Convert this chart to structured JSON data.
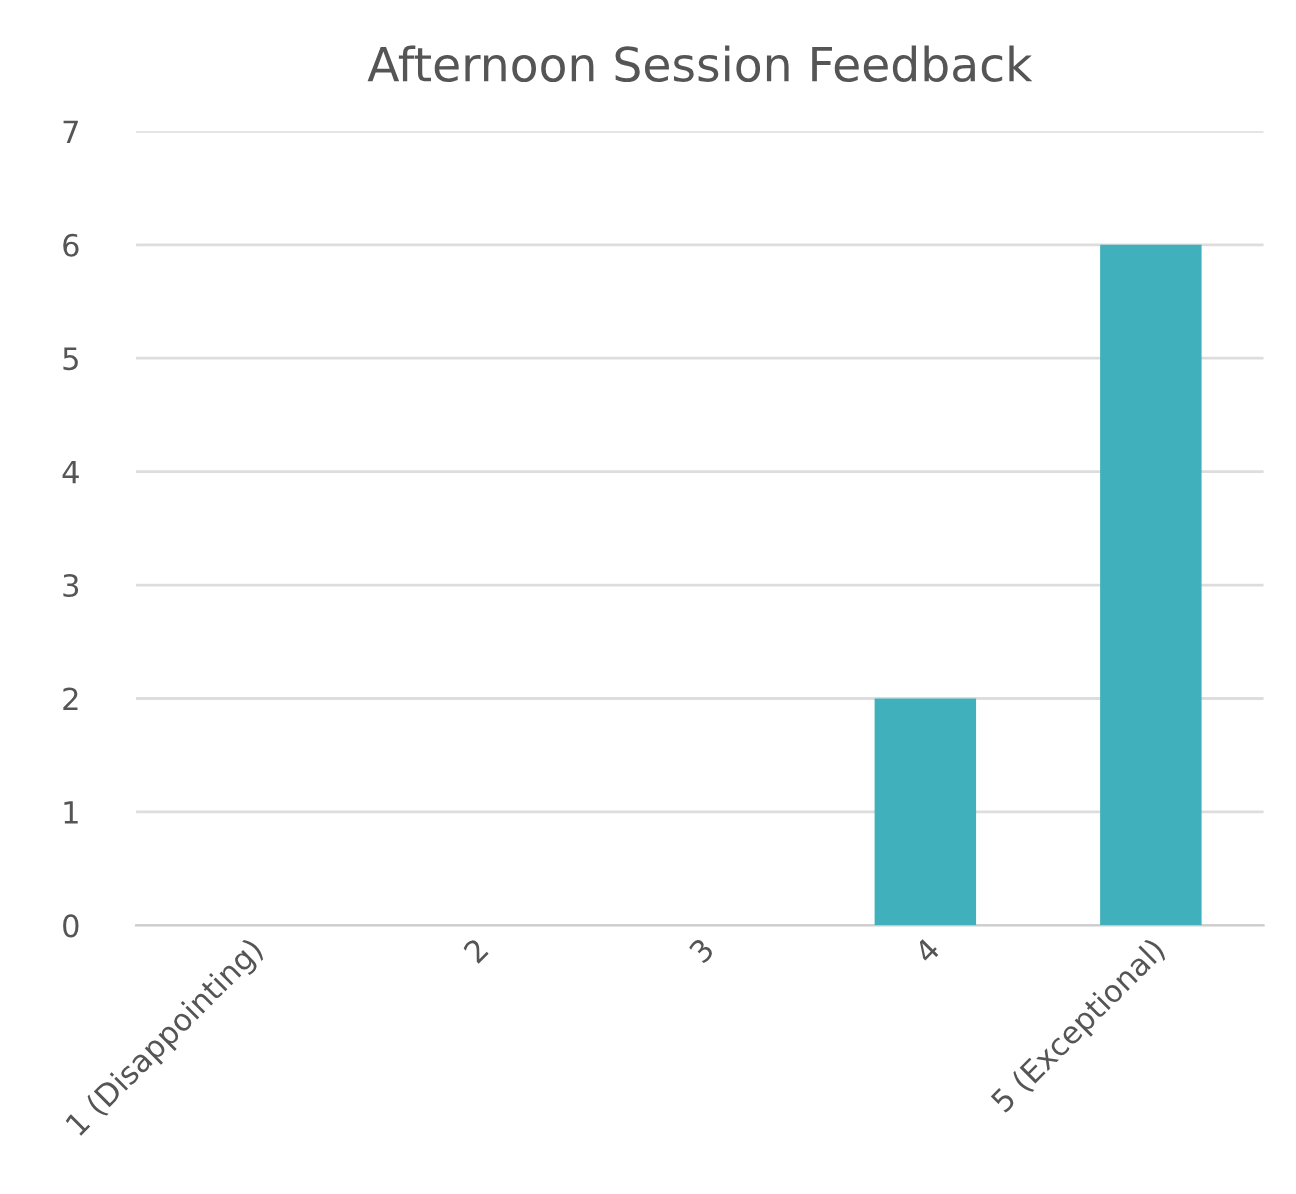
{
  "chart_data": {
    "type": "bar",
    "title": "Afternoon Session Feedback",
    "categories": [
      "1 (Disappointing)",
      "2",
      "3",
      "4",
      "5 (Exceptional)"
    ],
    "values": [
      0,
      0,
      0,
      2,
      6
    ],
    "color": "#40b1bc",
    "ylim": [
      0,
      7
    ],
    "yticks": [
      0,
      1,
      2,
      3,
      4,
      5,
      6,
      7
    ],
    "grid": "y"
  }
}
